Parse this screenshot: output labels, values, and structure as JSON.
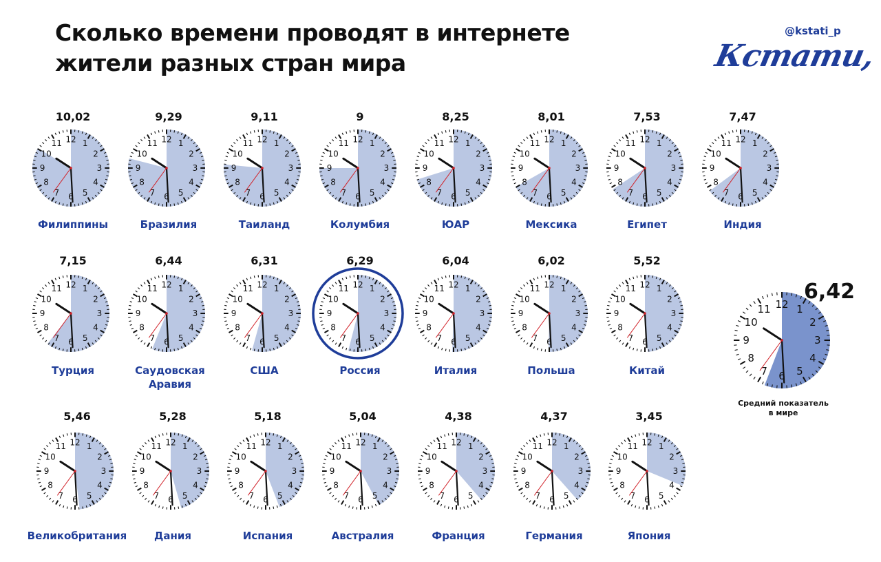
{
  "title": "Сколько времени проводят в интернете жители разных стран мира",
  "handle": "@kstati_p",
  "logo_text": "Кстати,",
  "colors": {
    "fill": "#bac7e3",
    "fill_average": "#7a93cc",
    "accent": "#1f3d99",
    "second_hand": "#d2232a"
  },
  "chart_data": {
    "type": "clock",
    "unit_note": "",
    "items": [
      {
        "country": "Филиппины",
        "label": "10,02",
        "hours": 10,
        "minutes": 2
      },
      {
        "country": "Бразилия",
        "label": "9,29",
        "hours": 9,
        "minutes": 29
      },
      {
        "country": "Таиланд",
        "label": "9,11",
        "hours": 9,
        "minutes": 11
      },
      {
        "country": "Колумбия",
        "label": "9",
        "hours": 9,
        "minutes": 0
      },
      {
        "country": "ЮАР",
        "label": "8,25",
        "hours": 8,
        "minutes": 25
      },
      {
        "country": "Мексика",
        "label": "8,01",
        "hours": 8,
        "minutes": 1
      },
      {
        "country": "Египет",
        "label": "7,53",
        "hours": 7,
        "minutes": 53
      },
      {
        "country": "Индия",
        "label": "7,47",
        "hours": 7,
        "minutes": 47
      },
      {
        "country": "Турция",
        "label": "7,15",
        "hours": 7,
        "minutes": 15
      },
      {
        "country": "Саудовская Аравия",
        "label": "6,44",
        "hours": 6,
        "minutes": 44
      },
      {
        "country": "США",
        "label": "6,31",
        "hours": 6,
        "minutes": 31
      },
      {
        "country": "Россия",
        "label": "6,29",
        "hours": 6,
        "minutes": 29,
        "highlight": true
      },
      {
        "country": "Италия",
        "label": "6,04",
        "hours": 6,
        "minutes": 4
      },
      {
        "country": "Польша",
        "label": "6,02",
        "hours": 6,
        "minutes": 2
      },
      {
        "country": "Китай",
        "label": "5,52",
        "hours": 5,
        "minutes": 52
      },
      {
        "country": "Великобритания",
        "label": "5,46",
        "hours": 5,
        "minutes": 46
      },
      {
        "country": "Дания",
        "label": "5,28",
        "hours": 5,
        "minutes": 28
      },
      {
        "country": "Испания",
        "label": "5,18",
        "hours": 5,
        "minutes": 18
      },
      {
        "country": "Австралия",
        "label": "5,04",
        "hours": 5,
        "minutes": 4
      },
      {
        "country": "Франция",
        "label": "4,38",
        "hours": 4,
        "minutes": 38
      },
      {
        "country": "Германия",
        "label": "4,37",
        "hours": 4,
        "minutes": 37
      },
      {
        "country": "Япония",
        "label": "3,45",
        "hours": 3,
        "minutes": 45
      }
    ],
    "average": {
      "country": "Средний показатель в мире",
      "label": "6,42",
      "hours": 6,
      "minutes": 42
    }
  }
}
